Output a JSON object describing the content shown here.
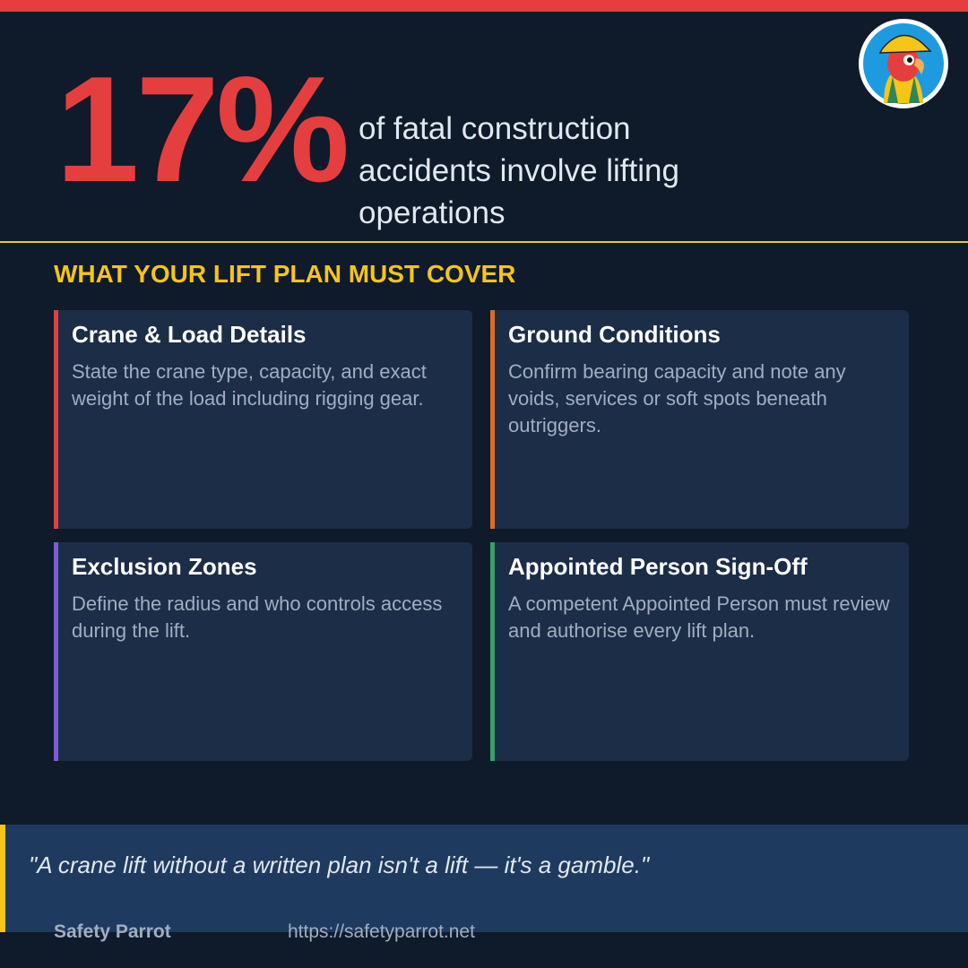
{
  "header": {
    "stat": "17%",
    "stat_text": "of fatal construction accidents involve lifting operations"
  },
  "section": {
    "title": "WHAT YOUR LIFT PLAN MUST COVER",
    "cards": [
      {
        "title": "Crane & Load Details",
        "body": "State the crane type, capacity, and exact weight of the load including rigging gear."
      },
      {
        "title": "Ground Conditions",
        "body": "Confirm bearing capacity and note any voids, services or soft spots beneath outriggers."
      },
      {
        "title": "Exclusion Zones",
        "body": "Define the radius and who controls access during the lift."
      },
      {
        "title": "Appointed Person Sign-Off",
        "body": "A competent Appointed Person must review and authorise every lift plan."
      }
    ]
  },
  "footer": {
    "quote": "\"A crane lift without a written plan isn't a lift — it's a gamble.\"",
    "brand": "Safety Parrot",
    "url": "https://safetyparrot.net"
  }
}
